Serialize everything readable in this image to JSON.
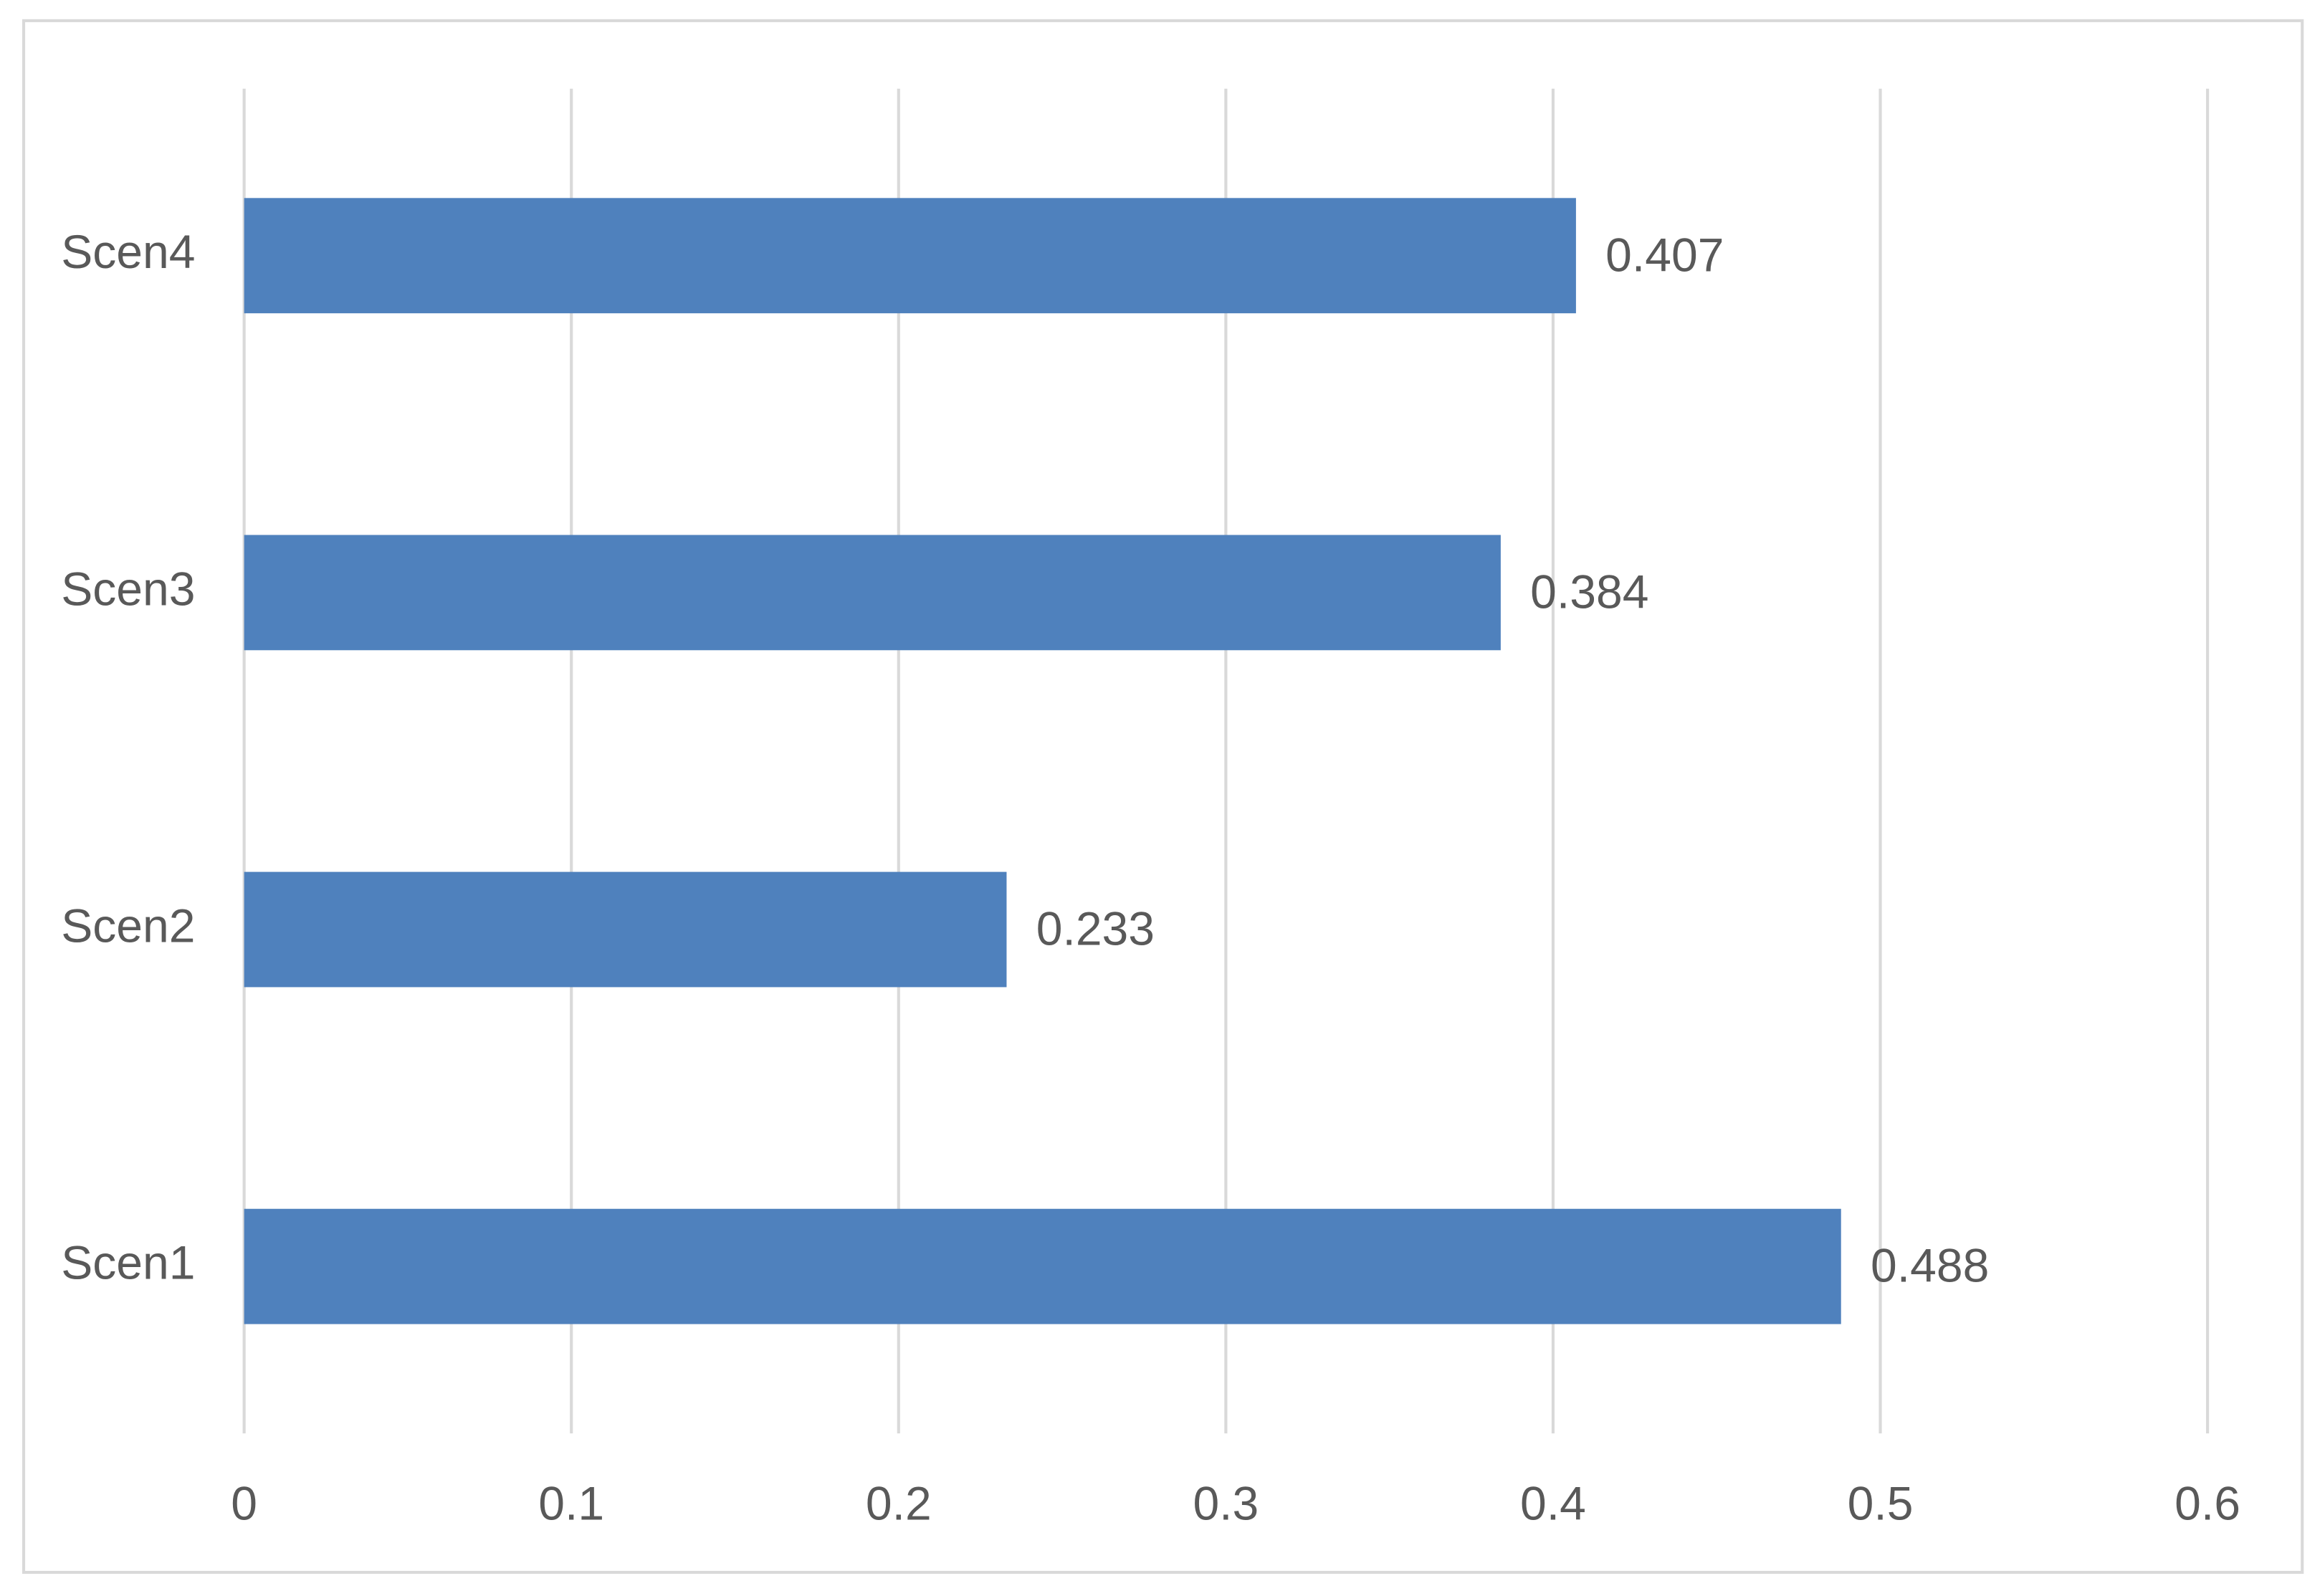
{
  "chart_data": {
    "type": "bar",
    "orientation": "horizontal",
    "categories": [
      "Scen1",
      "Scen2",
      "Scen3",
      "Scen4"
    ],
    "values": [
      0.488,
      0.233,
      0.384,
      0.407
    ],
    "color": "#4f81bd",
    "xlim": [
      0,
      0.6
    ],
    "xticks": [
      0,
      0.1,
      0.2,
      0.3,
      0.4,
      0.5,
      0.6
    ],
    "grid": true
  }
}
